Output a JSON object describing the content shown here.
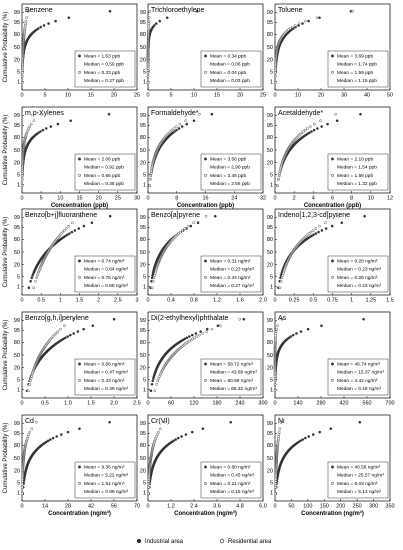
{
  "figure": {
    "y_axis_label": "Cumulative Probability (%)",
    "x_axis_label_ppb": "Concentration (ppb)",
    "x_axis_label_ngm3": "Concentration (ng/m³)",
    "legend_industrial": "Industrial area",
    "legend_residential": "Residential area",
    "y_ticks": [
      "1",
      "5",
      "20",
      "50",
      "80",
      "95",
      "99"
    ],
    "y_tick_probs": [
      1,
      5,
      20,
      50,
      80,
      95,
      99
    ]
  },
  "chart_data": [
    {
      "type": "scatter",
      "title": "Benzene",
      "xlim": [
        0,
        25
      ],
      "xticks": [
        "0",
        "5",
        "10",
        "15",
        "20",
        "25"
      ],
      "series": [
        {
          "name": "Industrial area",
          "mean_label": "Mean = 1.53 ppb",
          "median_label": "Median = 0.59 ppb",
          "median": 0.59,
          "max": 24
        },
        {
          "name": "Residential area",
          "mean_label": "Mean = 0.33 ppb",
          "median_label": "Median = 0.27 ppb",
          "median": 0.27,
          "max": 1.5
        }
      ]
    },
    {
      "type": "scatter",
      "title": "Trichloroethylene",
      "xlim": [
        0,
        25
      ],
      "xticks": [
        "0",
        "5",
        "10",
        "15",
        "20",
        "25"
      ],
      "series": [
        {
          "name": "Industrial area",
          "mean_label": "Mean = 0.34 ppb",
          "median_label": "Median = 0.06 ppb",
          "median": 0.06,
          "max": 15
        },
        {
          "name": "Residential area",
          "mean_label": "Mean = 0.04 ppb",
          "median_label": "Median = 0.03 ppb",
          "median": 0.03,
          "max": 0.5
        }
      ]
    },
    {
      "type": "scatter",
      "title": "Toluene",
      "xlim": [
        0,
        50
      ],
      "xticks": [
        "0",
        "10",
        "20",
        "30",
        "40",
        "50"
      ],
      "series": [
        {
          "name": "Industrial area",
          "mean_label": "Mean = 3.69 ppb",
          "median_label": "Median = 1.74 ppb",
          "median": 1.74,
          "max": 40
        },
        {
          "name": "Residential area",
          "mean_label": "Mean = 1.59 ppb",
          "median_label": "Median = 1.15 ppb",
          "median": 1.15,
          "max": 42
        }
      ]
    },
    {
      "type": "scatter",
      "title": "m,p-Xylenes",
      "xlim": [
        0,
        30
      ],
      "xticks": [
        "0",
        "5",
        "10",
        "15",
        "20",
        "25",
        "30"
      ],
      "series": [
        {
          "name": "Industrial area",
          "mean_label": "Mean = 2.06 ppb",
          "median_label": "Median = 0.92 ppb",
          "median": 0.92,
          "max": 28
        },
        {
          "name": "Residential area",
          "mean_label": "Mean = 0.66 ppb",
          "median_label": "Median = 0.35 ppb",
          "median": 0.35,
          "max": 6
        }
      ]
    },
    {
      "type": "scatter",
      "title": "Formaldehyde*",
      "xlim": [
        0,
        32
      ],
      "xticks": [
        "0",
        "8",
        "16",
        "24",
        "32"
      ],
      "series": [
        {
          "name": "Industrial area",
          "mean_label": "Mean = 3.56 ppb",
          "median_label": "Median = 2.90 ppb",
          "median": 2.9,
          "max": 20
        },
        {
          "name": "Residential area",
          "mean_label": "Mean = 3.45 ppb",
          "median_label": "Median = 2.56 ppb",
          "median": 2.56,
          "max": 16
        }
      ]
    },
    {
      "type": "scatter",
      "title": "Acetaldehyde*",
      "xlim": [
        0,
        12
      ],
      "xticks": [
        "0",
        "2",
        "4",
        "6",
        "8",
        "10",
        "12"
      ],
      "series": [
        {
          "name": "Industrial area",
          "mean_label": "Mean = 2.10 ppb",
          "median_label": "Median = 1.54 ppb",
          "median": 1.54,
          "max": 10
        },
        {
          "name": "Residential area",
          "mean_label": "Mean = 1.66 ppb",
          "median_label": "Median = 1.32 ppb",
          "median": 1.32,
          "max": 7
        }
      ]
    },
    {
      "type": "scatter",
      "title": "Benzo[b+j]fluoranthene",
      "xlim": [
        0,
        3
      ],
      "xticks": [
        "0",
        "0.5",
        "1",
        "1.5",
        "2",
        "2.5",
        "3"
      ],
      "series": [
        {
          "name": "Industrial area",
          "mean_label": "Mean = 0.74 ng/m³",
          "median_label": "Median = 0.64 ng/m³",
          "median": 0.64,
          "max": 2.5
        },
        {
          "name": "Residential area",
          "mean_label": "Mean = 0.75 ng/m³",
          "median_label": "Median = 0.68 ng/m³",
          "median": 0.68,
          "max": 1.6
        }
      ]
    },
    {
      "type": "scatter",
      "title": "Benzo[a]pyrene",
      "xlim": [
        0,
        2
      ],
      "xticks": [
        "0",
        "0.4",
        "0.8",
        "1.2",
        "1.6",
        "2.0"
      ],
      "series": [
        {
          "name": "Industrial area",
          "mean_label": "Mean = 0.31 ng/m³",
          "median_label": "Median = 0.23 ng/m³",
          "median": 0.23,
          "max": 1.3
        },
        {
          "name": "Residential area",
          "mean_label": "Mean = 0.34 ng/m³",
          "median_label": "Median = 0.27 ng/m³",
          "median": 0.27,
          "max": 1.1
        }
      ]
    },
    {
      "type": "scatter",
      "title": "Indeno[1,2,3-cd]pyrene",
      "xlim": [
        0,
        1.5
      ],
      "xticks": [
        "0",
        "0.25",
        "0.5",
        "0.75",
        "1",
        "1.25",
        "1.5"
      ],
      "series": [
        {
          "name": "Industrial area",
          "mean_label": "Mean = 0.28 ng/m³",
          "median_label": "Median = 0.23 ng/m³",
          "median": 0.23,
          "max": 1.3
        },
        {
          "name": "Residential area",
          "mean_label": "Mean = 0.26 ng/m³",
          "median_label": "Median = 0.23 ng/m³",
          "median": 0.23,
          "max": 0.9
        }
      ]
    },
    {
      "type": "scatter",
      "title": "Benzo[g,h,i]perylene",
      "xlim": [
        0,
        2.5
      ],
      "xticks": [
        "0",
        "0.5",
        "1.0",
        "1.5",
        "2.0",
        "2.5"
      ],
      "series": [
        {
          "name": "Industrial area",
          "mean_label": "Mean = 0.56 ng/m³",
          "median_label": "Median = 0.47 ng/m³",
          "median": 0.47,
          "max": 2.2
        },
        {
          "name": "Residential area",
          "mean_label": "Mean = 0.43 ng/m³",
          "median_label": "Median = 0.39 ng/m³",
          "median": 0.39,
          "max": 1.2
        }
      ]
    },
    {
      "type": "scatter",
      "title": "Di(2-ethylhexyl)phthalate",
      "xlim": [
        0,
        300
      ],
      "xticks": [
        "0",
        "60",
        "120",
        "180",
        "240",
        "300"
      ],
      "series": [
        {
          "name": "Industrial area",
          "mean_label": "Mean = 58.72 ng/m³",
          "median_label": "Median = 43.89 ng/m³",
          "median": 43.89,
          "max": 280
        },
        {
          "name": "Residential area",
          "mean_label": "Mean = 80.69 ng/m³",
          "median_label": "Median = 65.32 ng/m³",
          "median": 65.32,
          "max": 260
        }
      ]
    },
    {
      "type": "scatter",
      "title": "As",
      "xlim": [
        0,
        700
      ],
      "xticks": [
        "0",
        "140",
        "280",
        "420",
        "560",
        "700"
      ],
      "series": [
        {
          "name": "Industrial area",
          "mean_label": "Mean = 46.74 ng/m³",
          "median_label": "Median = 15.37 ng/m³",
          "median": 15.37,
          "max": 680
        },
        {
          "name": "Residential area",
          "mean_label": "Mean = 4.42 ng/m³",
          "median_label": "Median = 0.18 ng/m³",
          "median": 0.18,
          "max": 60
        }
      ]
    },
    {
      "type": "scatter",
      "title": "Cd",
      "xlim": [
        0,
        70
      ],
      "xticks": [
        "0",
        "14",
        "28",
        "42",
        "56",
        "70"
      ],
      "series": [
        {
          "name": "Industrial area",
          "mean_label": "Mean = 9.36 ng/m³",
          "median_label": "Median = 5.22 ng/m³",
          "median": 5.22,
          "max": 62
        },
        {
          "name": "Residential area",
          "mean_label": "Mean = 1.51 ng/m³",
          "median_label": "Median = 0.99 ng/m³",
          "median": 0.99,
          "max": 10
        }
      ]
    },
    {
      "type": "scatter",
      "title": "Cr(VI)",
      "xlim": [
        0,
        6
      ],
      "xticks": [
        "0",
        "1.2",
        "2.4",
        "3.6",
        "4.8",
        "6.0"
      ],
      "series": [
        {
          "name": "Industrial area",
          "mean_label": "Mean = 0.88 ng/m³",
          "median_label": "Median = 0.45 ng/m³",
          "median": 0.45,
          "max": 5
        },
        {
          "name": "Residential area",
          "mean_label": "Mean = 0.21 ng/m³",
          "median_label": "Median = 0.15 ng/m³",
          "median": 0.15,
          "max": 1
        }
      ]
    },
    {
      "type": "scatter",
      "title": "Ni",
      "xlim": [
        0,
        350
      ],
      "xticks": [
        "0",
        "50",
        "100",
        "150",
        "200",
        "250",
        "300",
        "350"
      ],
      "series": [
        {
          "name": "Industrial area",
          "mean_label": "Mean = 40.58 ng/m³",
          "median_label": "Median = 25.57 ng/m³",
          "median": 25.57,
          "max": 300
        },
        {
          "name": "Residential area",
          "mean_label": "Mean = 6.03 ng/m³",
          "median_label": "Median = 5.13 ng/m³",
          "median": 5.13,
          "max": 20
        }
      ]
    }
  ]
}
